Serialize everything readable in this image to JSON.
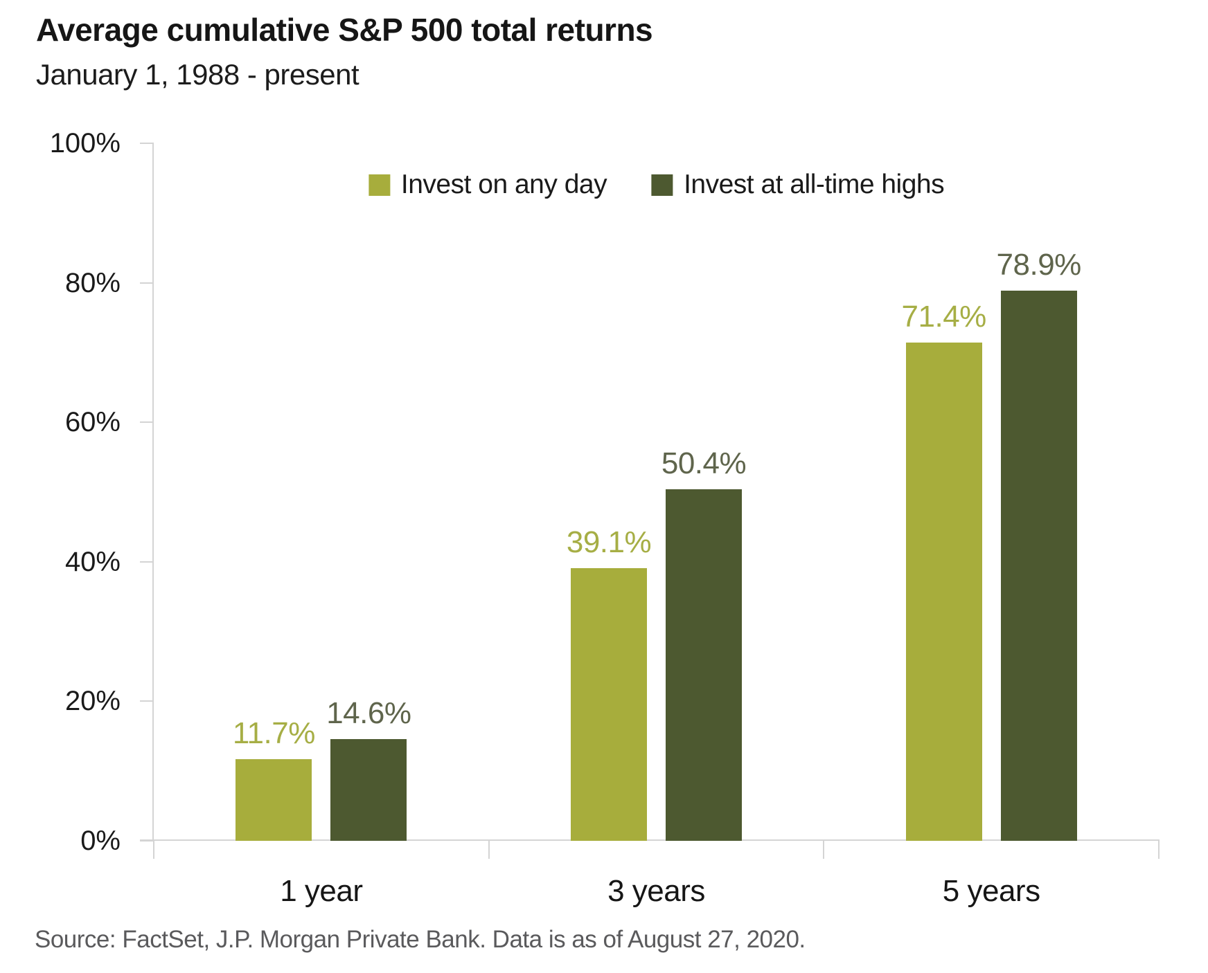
{
  "chart_data": {
    "type": "bar",
    "title": "Average cumulative S&P 500 total returns",
    "subtitle": "January 1, 1988 - present",
    "categories": [
      "1 year",
      "3 years",
      "5 years"
    ],
    "series": [
      {
        "name": "Invest on any day",
        "values": [
          11.7,
          39.1,
          71.4
        ],
        "color": "#a7ad3c",
        "label_color": "#a6ae45"
      },
      {
        "name": "Invest at all-time highs",
        "values": [
          14.6,
          50.4,
          78.9
        ],
        "color": "#4d5930",
        "label_color": "#5f654c"
      }
    ],
    "value_suffix": "%",
    "xlabel": "",
    "ylabel": "",
    "ylim": [
      0,
      100
    ],
    "yticks": [
      {
        "value": 0,
        "label": "0%"
      },
      {
        "value": 20,
        "label": "20%"
      },
      {
        "value": 40,
        "label": "40%"
      },
      {
        "value": 60,
        "label": "60%"
      },
      {
        "value": 80,
        "label": "80%"
      },
      {
        "value": 100,
        "label": "100%"
      }
    ],
    "grid": false,
    "legend_position": "top-center"
  },
  "footer": {
    "source": "Source: FactSet, J.P. Morgan Private Bank. Data is as of August 27, 2020."
  },
  "colors": {
    "background": "#ffffff",
    "axis_line": "#d4d4d4",
    "axis_text": "#1a1a1a",
    "title_text": "#161616",
    "source_text": "#5a5a5c"
  }
}
